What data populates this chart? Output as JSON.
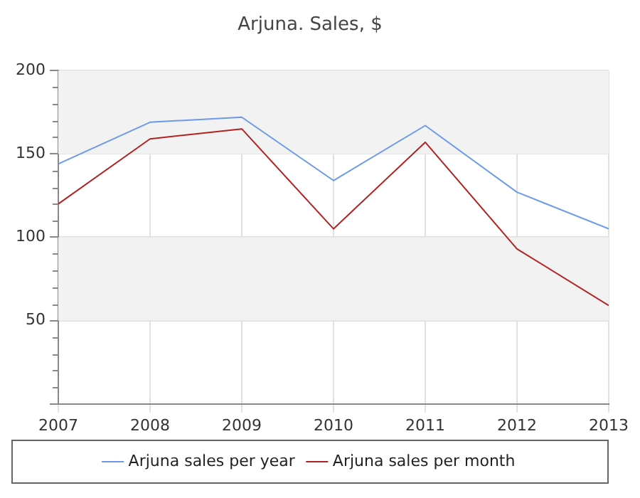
{
  "chart_data": {
    "type": "line",
    "title": "Arjuna. Sales, $",
    "x": [
      2007,
      2008,
      2009,
      2010,
      2011,
      2012,
      2013
    ],
    "series": [
      {
        "name": "Arjuna sales per year",
        "color": "#6b9ae8",
        "values": [
          144,
          169,
          172,
          134,
          167,
          127,
          105
        ]
      },
      {
        "name": "Arjuna sales per month",
        "color": "#b22222",
        "values": [
          120,
          159,
          165,
          105,
          157,
          93,
          59
        ]
      }
    ],
    "xlim": [
      2007,
      2013
    ],
    "xticks": [
      2007,
      2008,
      2009,
      2010,
      2011,
      2012,
      2013
    ],
    "ylim": [
      0,
      200
    ],
    "yticks": [
      {
        "value": 0,
        "label": null
      },
      50,
      100,
      150,
      200
    ],
    "bands": [
      {
        "axis": "y",
        "from": 50,
        "to": 100,
        "color": "#f2f2f2"
      },
      {
        "axis": "y",
        "from": 150,
        "to": 200,
        "color": "#f2f2f2"
      }
    ],
    "grid": true,
    "legend": "bottom",
    "marker": "none",
    "line_style": "solid"
  }
}
